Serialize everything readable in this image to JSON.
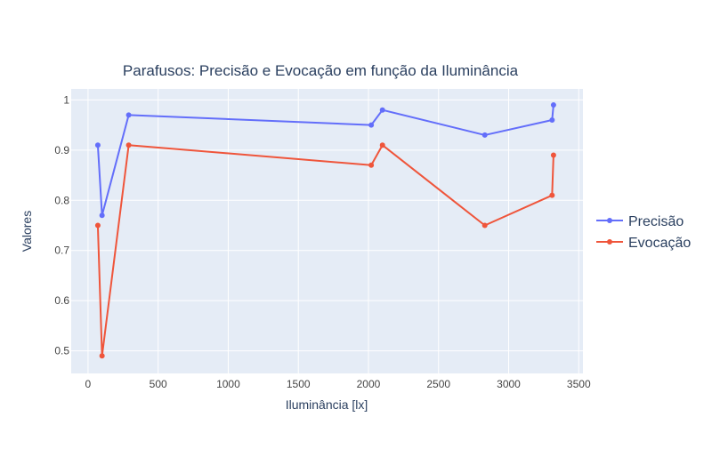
{
  "chart_data": {
    "type": "line",
    "title": "Parafusos: Precisão e Evocação em função da Iluminância",
    "xlabel": "Iluminância [lx]",
    "ylabel": "Valores",
    "xlim": [
      -120,
      3530
    ],
    "ylim": [
      0.455,
      1.022
    ],
    "xticks": [
      0,
      500,
      1000,
      1500,
      2000,
      2500,
      3000,
      3500
    ],
    "xtick_labels": [
      "0",
      "500",
      "1000",
      "1500",
      "2000",
      "2500",
      "3000",
      "3500"
    ],
    "yticks": [
      0.5,
      0.6,
      0.7,
      0.8,
      0.9,
      1.0
    ],
    "ytick_labels": [
      "0.5",
      "0.6",
      "0.7",
      "0.8",
      "0.9",
      "1"
    ],
    "grid": true,
    "legend_position": "right",
    "x": [
      70,
      100,
      290,
      2020,
      2100,
      2830,
      3310,
      3320
    ],
    "series": [
      {
        "name": "Precisão",
        "color": "#636efa",
        "values": [
          0.91,
          0.77,
          0.97,
          0.95,
          0.98,
          0.93,
          0.96,
          0.99
        ]
      },
      {
        "name": "Evocação",
        "color": "#ef553b",
        "values": [
          0.75,
          0.49,
          0.91,
          0.87,
          0.91,
          0.75,
          0.81,
          0.89
        ]
      }
    ]
  },
  "colors": {
    "plot_bg": "#e5ecf6",
    "grid": "#ffffff",
    "text": "#2a3f5f",
    "tick_text": "#444444"
  }
}
